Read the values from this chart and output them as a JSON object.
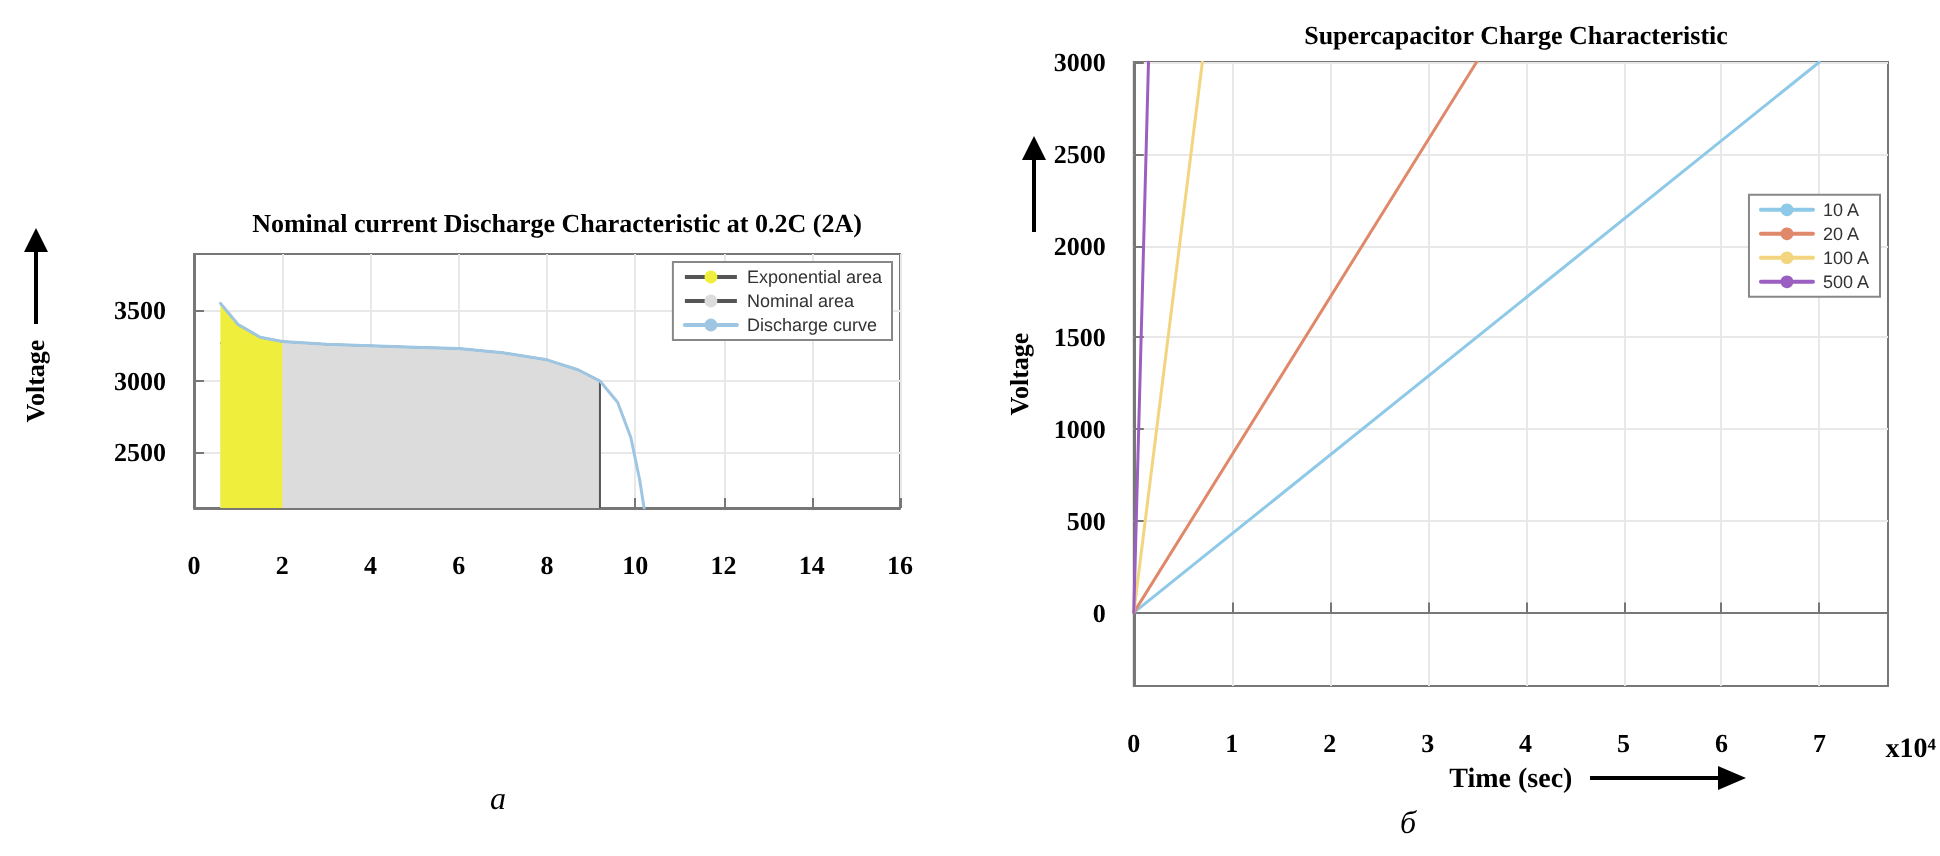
{
  "chart_data": [
    {
      "type": "line",
      "title": "Nominal current Discharge Characteristic at 0.2C (2A)",
      "ylabel": "Voltage",
      "annotations": [
        "а"
      ],
      "xlim": [
        0,
        16
      ],
      "xticks": [
        0,
        2,
        4,
        6,
        8,
        10,
        12,
        14,
        16
      ],
      "ylim": [
        2100,
        3900
      ],
      "yticks": [
        2500,
        3000,
        3500
      ],
      "grid": true,
      "legend": "top right",
      "series": [
        {
          "name": "Exponential area",
          "type": "area",
          "color": "#f0ee3c",
          "x": [
            0.6,
            1.0,
            1.5,
            2.0
          ],
          "values": [
            3550,
            3400,
            3310,
            3280
          ]
        },
        {
          "name": "Nominal area",
          "type": "area",
          "color": "#dcdcdc",
          "x": [
            0.6,
            2.0,
            3,
            4,
            5,
            6,
            7,
            8,
            8.7,
            9.2,
            9.2
          ],
          "values": [
            3270,
            3280,
            3260,
            3250,
            3240,
            3230,
            3200,
            3150,
            3080,
            3000,
            2100
          ]
        },
        {
          "name": "Discharge curve",
          "type": "line",
          "color": "#9ec6e2",
          "x": [
            0.6,
            1.0,
            1.5,
            2.0,
            3,
            4,
            5,
            6,
            7,
            8,
            8.7,
            9.2,
            9.6,
            9.9,
            10.1,
            10.2
          ],
          "values": [
            3550,
            3400,
            3310,
            3280,
            3260,
            3250,
            3240,
            3230,
            3200,
            3150,
            3080,
            3000,
            2850,
            2600,
            2300,
            2100
          ]
        }
      ]
    },
    {
      "type": "line",
      "title": "Supercapacitor Charge Characteristic",
      "ylabel": "Voltage",
      "xlabel": "Time (sec)",
      "annotations": [
        "x10⁴",
        "б"
      ],
      "xlim": [
        0,
        7.7
      ],
      "xticks": [
        0,
        1,
        2,
        3,
        4,
        5,
        6,
        7
      ],
      "ylim": [
        -400,
        3000
      ],
      "yticks": [
        0,
        500,
        1000,
        1500,
        2000,
        2500,
        3000
      ],
      "grid": true,
      "legend": "right",
      "series": [
        {
          "name": "10 A",
          "color": "#8ec9e8",
          "x": [
            0,
            7.0
          ],
          "values": [
            0,
            3000
          ]
        },
        {
          "name": "20 A",
          "color": "#e0896a",
          "x": [
            0,
            3.5
          ],
          "values": [
            0,
            3000
          ]
        },
        {
          "name": "100 A",
          "color": "#f2d57e",
          "x": [
            0,
            0.7
          ],
          "values": [
            0,
            3000
          ]
        },
        {
          "name": "500 A",
          "color": "#9a5fc0",
          "x": [
            0,
            0.15
          ],
          "values": [
            0,
            3000
          ]
        }
      ]
    }
  ]
}
